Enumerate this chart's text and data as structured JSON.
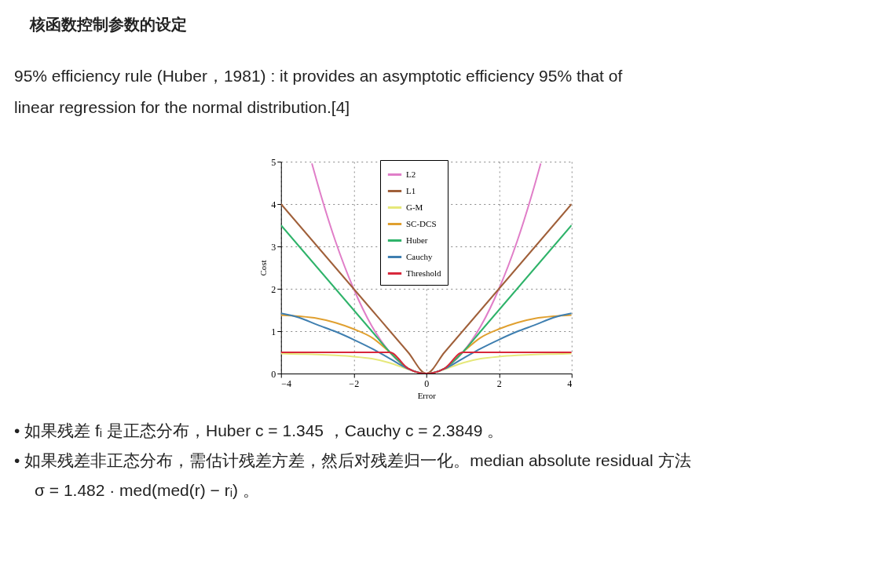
{
  "chart_data": {
    "type": "line",
    "title": "核函数控制参数的设定",
    "subtitle": "95% efficiency rule (Huber，1981) : it provides an asymptotic efficiency 95% that of linear regression for the normal distribution.[4]",
    "annotations": [
      "•  如果残差 fᵢ 是正态分布，Huber c = 1.345 ，Cauchy c = 2.3849 。",
      "•  如果残差非正态分布，需估计残差方差，然后对残差归一化。median absolute residual 方法",
      "σ = 1.482 · med(med(r) − rᵢ) 。"
    ],
    "xlabel": "Error",
    "ylabel": "Cost",
    "x": [
      -4,
      -3.5,
      -3,
      -2.5,
      -2,
      -1.5,
      -1,
      -0.5,
      0,
      0.5,
      1,
      1.5,
      2,
      2.5,
      3,
      3.5,
      4
    ],
    "series": [
      {
        "name": "L2",
        "color": "#e07ec8",
        "x": [
          -3.15,
          -3,
          -2.5,
          -2,
          -1.5,
          -1,
          -0.5,
          0,
          0.5,
          1,
          1.5,
          2,
          2.5,
          3,
          3.15
        ],
        "values": [
          4.96,
          4.5,
          3.12,
          2,
          1.12,
          0.5,
          0.12,
          0,
          0.12,
          0.5,
          1.12,
          2,
          3.12,
          4.5,
          4.96
        ]
      },
      {
        "name": "L1",
        "color": "#a0603a",
        "values": [
          4,
          3.5,
          3,
          2.5,
          2,
          1.5,
          1,
          0.5,
          0,
          0.5,
          1,
          1.5,
          2,
          2.5,
          3,
          3.5,
          4
        ]
      },
      {
        "name": "G-M",
        "color": "#e6e87a",
        "values": [
          0.47,
          0.46,
          0.45,
          0.43,
          0.4,
          0.35,
          0.25,
          0.1,
          0,
          0.1,
          0.25,
          0.35,
          0.4,
          0.43,
          0.45,
          0.46,
          0.47
        ]
      },
      {
        "name": "SC-DCS",
        "color": "#e0a030",
        "values": [
          1.38,
          1.35,
          1.3,
          1.2,
          1.05,
          0.85,
          0.5,
          0.12,
          0,
          0.12,
          0.5,
          0.85,
          1.05,
          1.2,
          1.3,
          1.35,
          1.38
        ]
      },
      {
        "name": "Huber",
        "color": "#2fb36a",
        "values": [
          3.5,
          3,
          2.5,
          2,
          1.5,
          1,
          0.5,
          0.12,
          0,
          0.12,
          0.5,
          1,
          1.5,
          2,
          2.5,
          3,
          3.5
        ]
      },
      {
        "name": "Cauchy",
        "color": "#3f7fb0",
        "values": [
          1.42,
          1.32,
          1.15,
          0.99,
          0.8,
          0.59,
          0.35,
          0.11,
          0,
          0.11,
          0.35,
          0.59,
          0.8,
          0.99,
          1.15,
          1.32,
          1.42
        ]
      },
      {
        "name": "Threshold",
        "color": "#d8283c",
        "values": [
          0.5,
          0.5,
          0.5,
          0.5,
          0.5,
          0.5,
          0.5,
          0.12,
          0,
          0.12,
          0.5,
          0.5,
          0.5,
          0.5,
          0.5,
          0.5,
          0.5
        ]
      }
    ],
    "xlim": [
      -4,
      4
    ],
    "xticks": [
      -4,
      -2,
      0,
      2,
      4
    ],
    "ylim": [
      0,
      5
    ],
    "yticks": [
      0,
      1,
      2,
      3,
      4,
      5
    ],
    "grid": true,
    "legend": "top",
    "line_style": "solid"
  }
}
